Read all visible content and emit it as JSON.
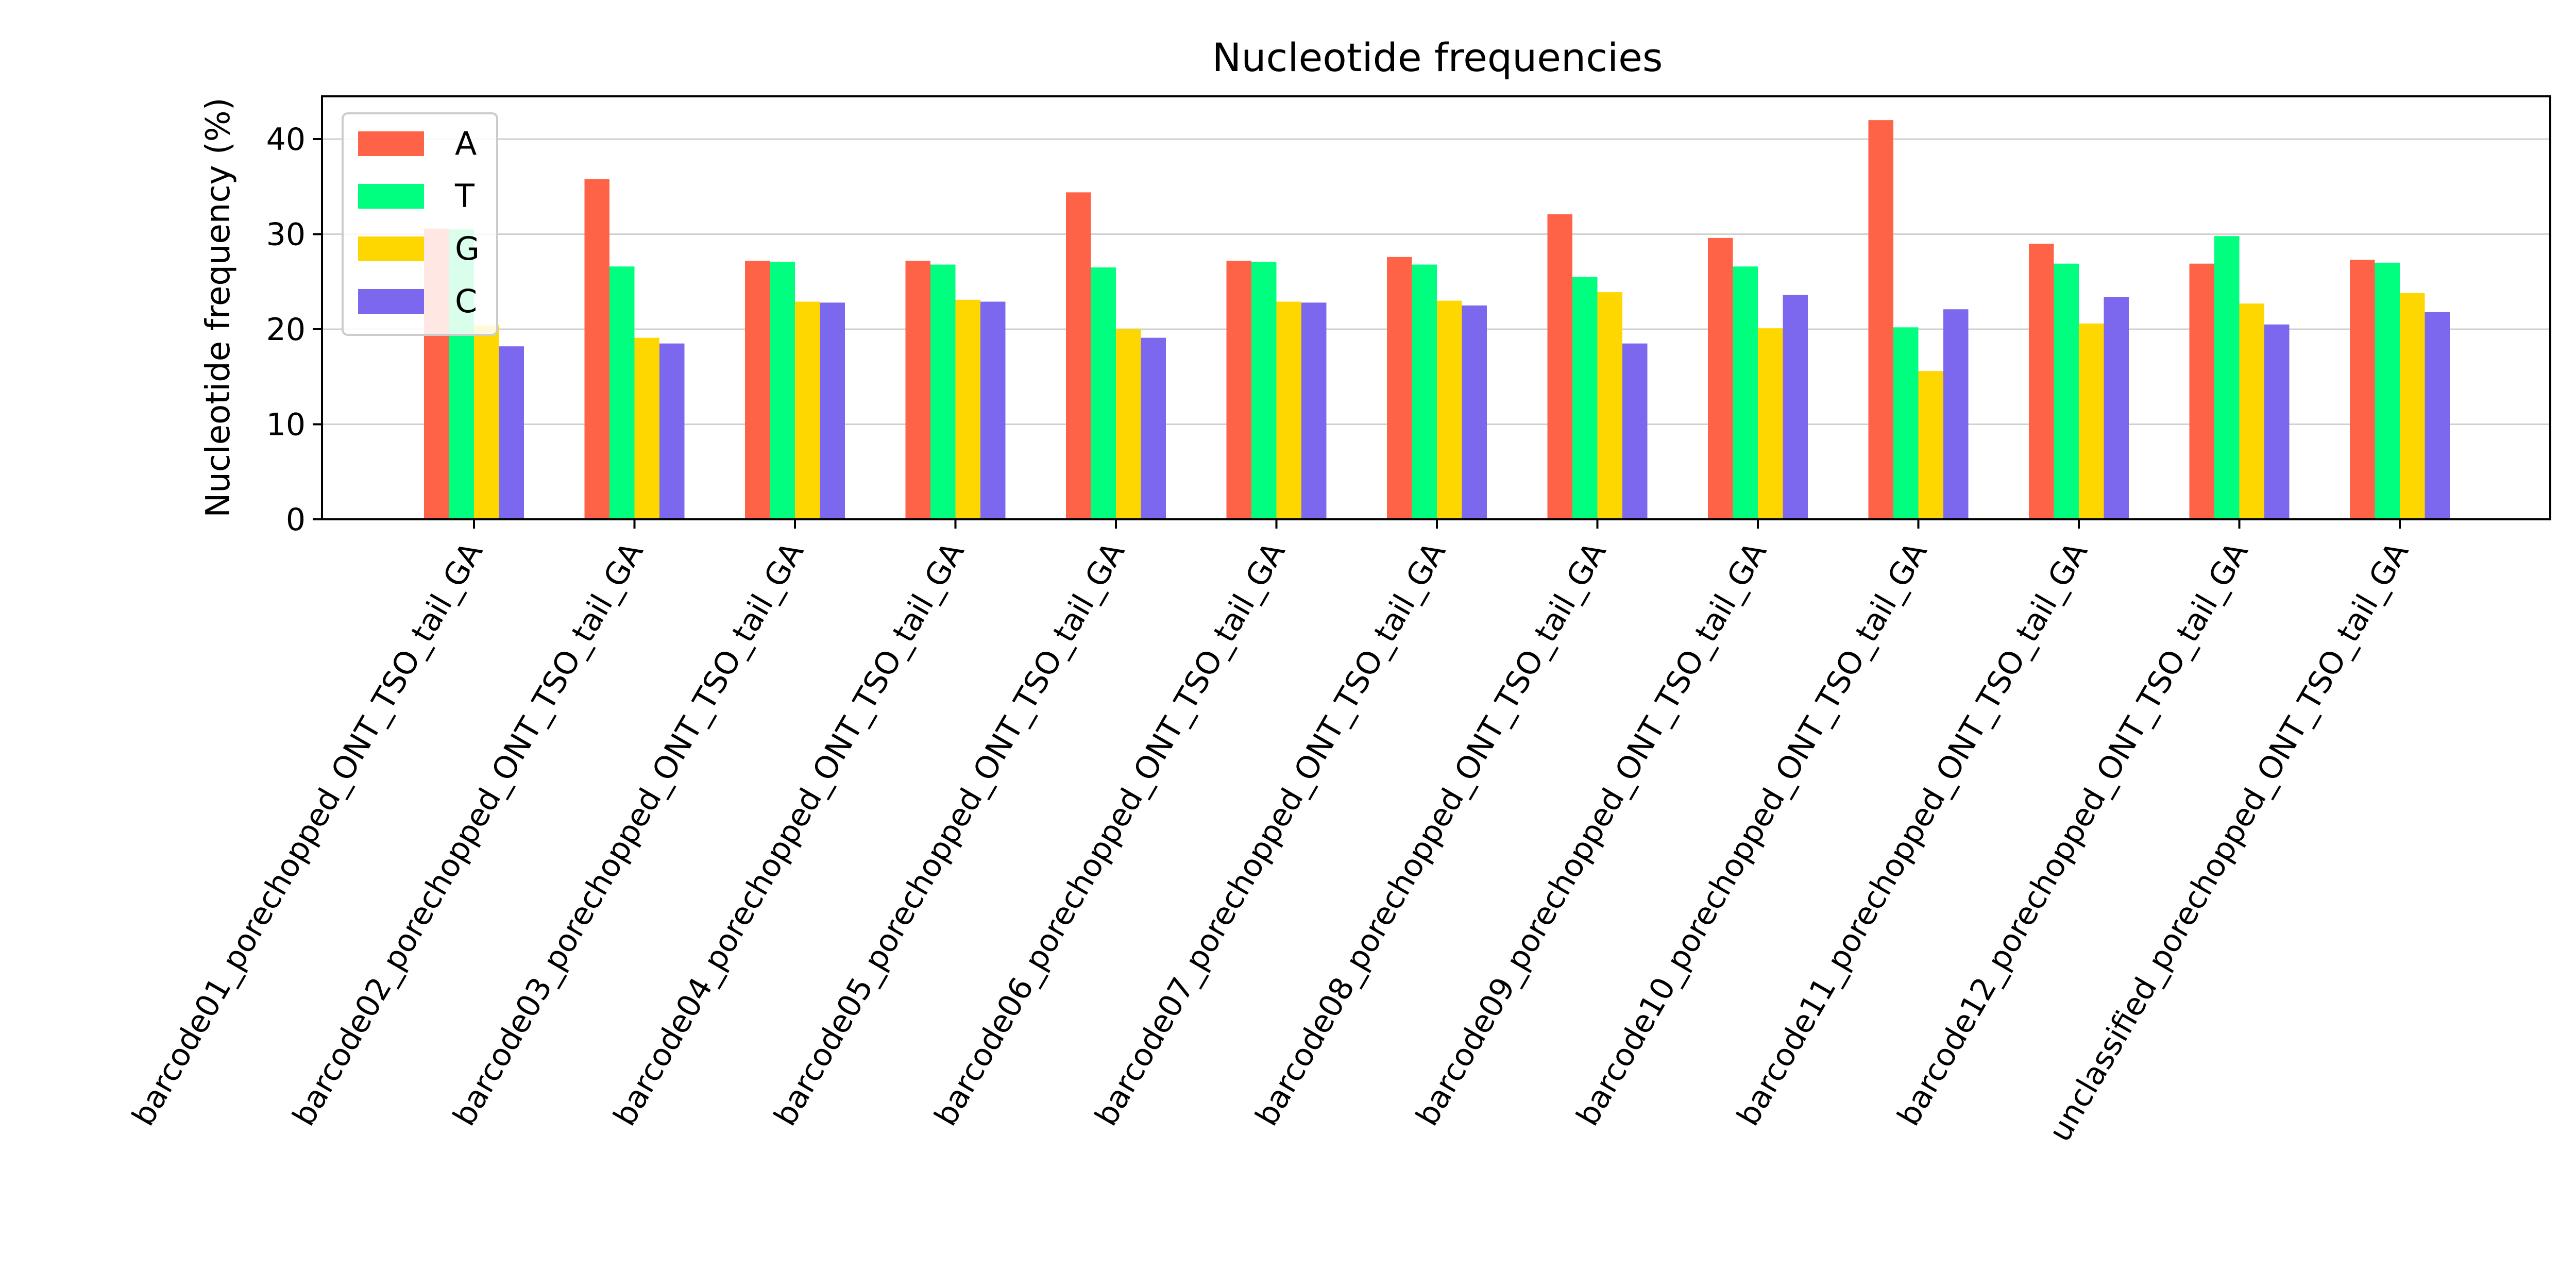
{
  "chart_data": {
    "type": "bar",
    "title": "Nucleotide frequencies",
    "xlabel": "",
    "ylabel": "Nucleotide frequency (%)",
    "ylim": [
      0,
      44.5
    ],
    "yticks": [
      0,
      10,
      20,
      30,
      40
    ],
    "grid": "horizontal",
    "legend_position": "upper-left",
    "categories": [
      "barcode01_porechopped_ONT_TSO_tail_GA",
      "barcode02_porechopped_ONT_TSO_tail_GA",
      "barcode03_porechopped_ONT_TSO_tail_GA",
      "barcode04_porechopped_ONT_TSO_tail_GA",
      "barcode05_porechopped_ONT_TSO_tail_GA",
      "barcode06_porechopped_ONT_TSO_tail_GA",
      "barcode07_porechopped_ONT_TSO_tail_GA",
      "barcode08_porechopped_ONT_TSO_tail_GA",
      "barcode09_porechopped_ONT_TSO_tail_GA",
      "barcode10_porechopped_ONT_TSO_tail_GA",
      "barcode11_porechopped_ONT_TSO_tail_GA",
      "barcode12_porechopped_ONT_TSO_tail_GA",
      "unclassified_porechopped_ONT_TSO_tail_GA"
    ],
    "series": [
      {
        "name": "A",
        "color": "#ff6347",
        "values": [
          30.6,
          35.8,
          27.2,
          27.2,
          34.4,
          27.2,
          27.6,
          32.1,
          29.6,
          42.0,
          29.0,
          26.9,
          27.3
        ]
      },
      {
        "name": "T",
        "color": "#00ff7f",
        "values": [
          30.5,
          26.6,
          27.1,
          26.8,
          26.5,
          27.1,
          26.8,
          25.5,
          26.6,
          20.2,
          26.9,
          29.8,
          27.0
        ]
      },
      {
        "name": "G",
        "color": "#ffd700",
        "values": [
          20.4,
          19.1,
          22.9,
          23.1,
          20.0,
          22.9,
          23.0,
          23.9,
          20.1,
          15.6,
          20.6,
          22.7,
          23.8
        ]
      },
      {
        "name": "C",
        "color": "#7b68ee",
        "values": [
          18.2,
          18.5,
          22.8,
          22.9,
          19.1,
          22.8,
          22.5,
          18.5,
          23.6,
          22.1,
          23.4,
          20.5,
          21.8
        ]
      }
    ]
  }
}
